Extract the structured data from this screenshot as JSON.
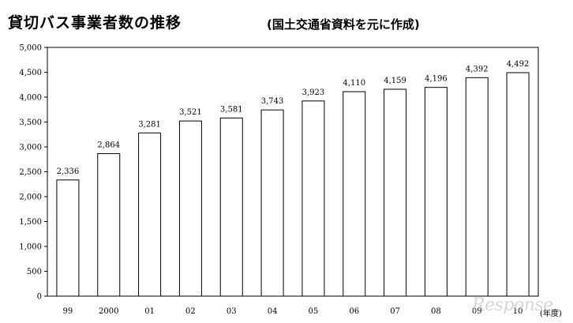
{
  "title": "貸切バス事業者数の推移",
  "subtitle": "(国土交通省資料を元に作成)",
  "watermark": "Response",
  "chart_data": {
    "type": "bar",
    "categories": [
      "99",
      "2000",
      "01",
      "02",
      "03",
      "04",
      "05",
      "06",
      "07",
      "08",
      "09",
      "10"
    ],
    "values": [
      2336,
      2864,
      3281,
      3521,
      3581,
      3743,
      3923,
      4110,
      4159,
      4196,
      4392,
      4492
    ],
    "data_labels": [
      "2,336",
      "2,864",
      "3,281",
      "3,521",
      "3,581",
      "3,743",
      "3,923",
      "4,110",
      "4,159",
      "4,196",
      "4,392",
      "4,492"
    ],
    "y_ticks": [
      "0",
      "500",
      "1,000",
      "1,500",
      "2,000",
      "2,500",
      "3,000",
      "3,500",
      "4,000",
      "4,500",
      "5,000"
    ],
    "ylim": [
      0,
      5000
    ],
    "xlabel": "(年度)",
    "ylabel": "",
    "grid": false,
    "legend": "none",
    "bar_fill": "#ffffff",
    "bar_stroke": "#000000"
  }
}
